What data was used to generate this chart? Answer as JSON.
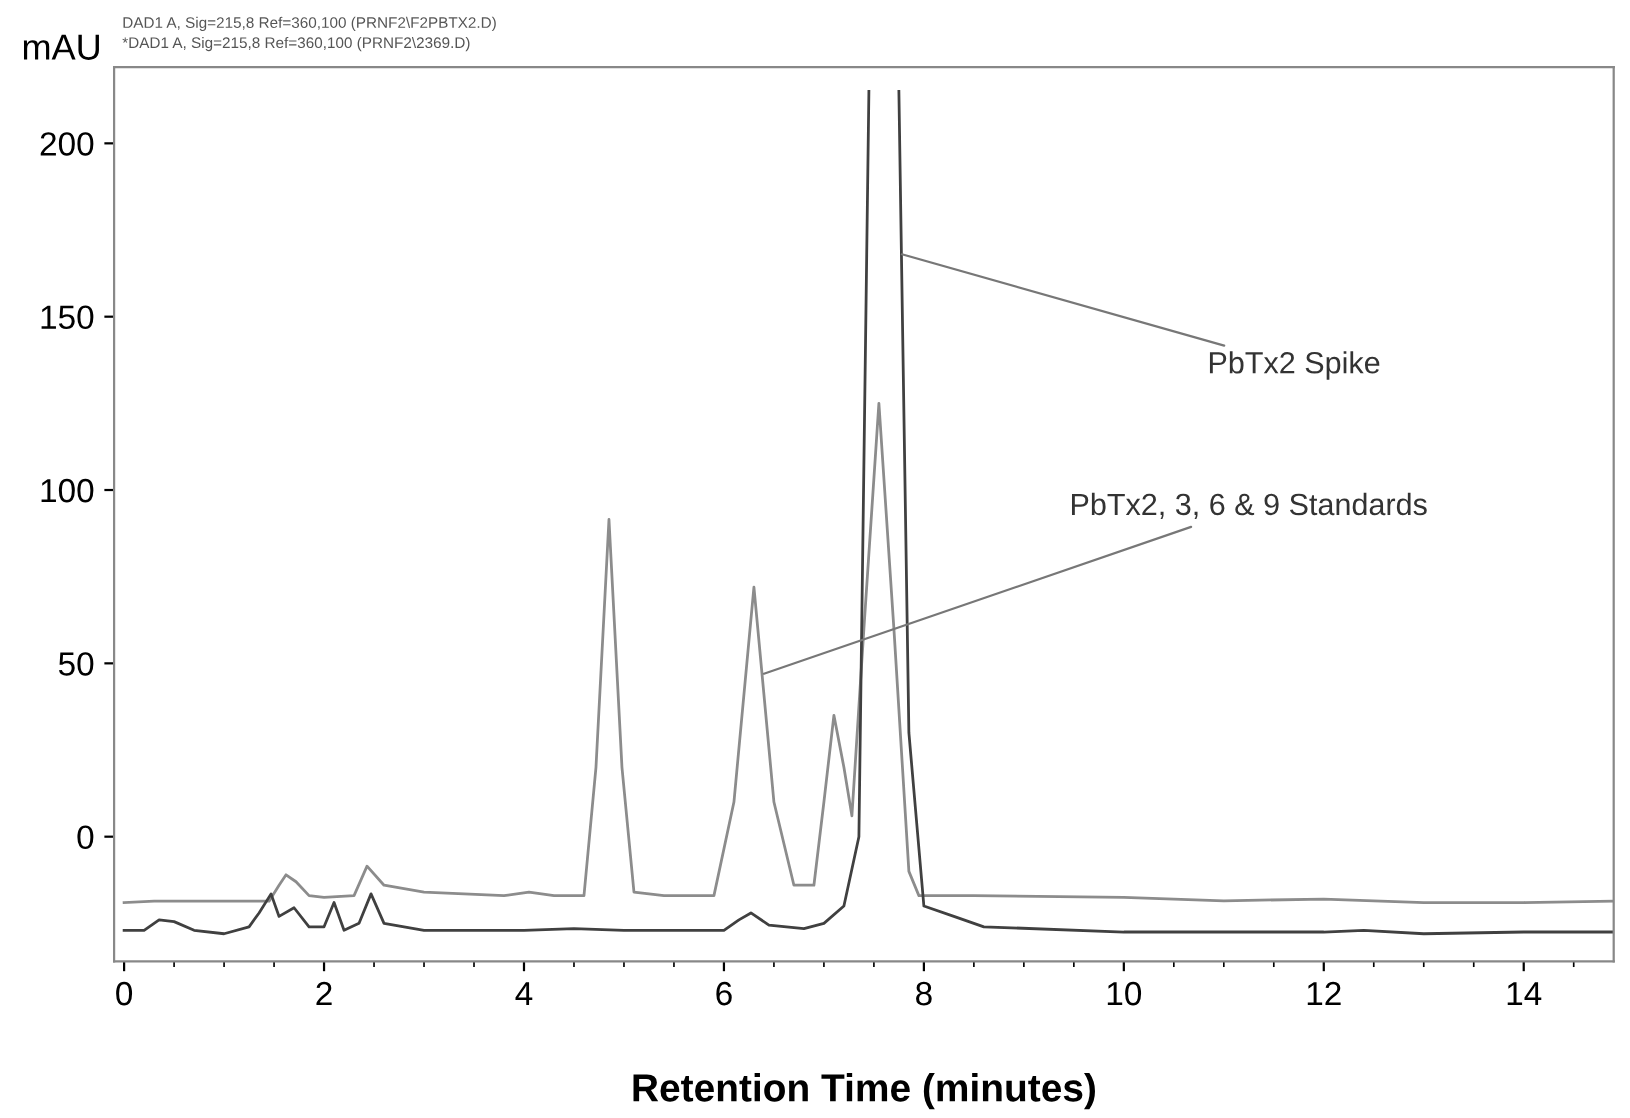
{
  "chart_data": {
    "type": "line",
    "xlabel": "Retention Time (minutes)",
    "ylabel": "mAU",
    "xlim": [
      -0.1,
      14.9
    ],
    "ylim": [
      -36,
      222
    ],
    "xticks": [
      0,
      2,
      4,
      6,
      8,
      10,
      12,
      14
    ],
    "yticks": [
      0,
      50,
      100,
      150,
      200
    ],
    "grid": false,
    "legend": false,
    "marker": "none",
    "line_style": "solid",
    "series": [
      {
        "color": "#8c8c8c",
        "x": [
          0,
          0.3,
          1.0,
          1.45,
          1.55,
          1.62,
          1.72,
          1.85,
          2.0,
          2.3,
          2.43,
          2.6,
          3.0,
          3.8,
          4.05,
          4.3,
          4.6,
          4.72,
          4.85,
          4.98,
          5.1,
          5.4,
          5.9,
          6.1,
          6.3,
          6.5,
          6.7,
          6.9,
          7.0,
          7.1,
          7.2,
          7.28,
          7.4,
          7.55,
          7.7,
          7.85,
          7.95,
          8.5,
          10,
          11,
          12,
          13,
          14,
          14.9
        ],
        "values": [
          -19,
          -18.6,
          -18.6,
          -18.6,
          -14,
          -11,
          -13,
          -17,
          -17.5,
          -17,
          -8.5,
          -14,
          -16,
          -17,
          -16,
          -17,
          -17,
          20,
          91.5,
          20,
          -16,
          -17,
          -17,
          10,
          72,
          10,
          -14,
          -14,
          10,
          35,
          20,
          6,
          60,
          125,
          60,
          -10,
          -17,
          -17,
          -17.5,
          -18.5,
          -18,
          -19,
          -19,
          -18.6
        ]
      },
      {
        "color": "#404040",
        "x": [
          0,
          0.2,
          0.35,
          0.5,
          0.7,
          1.0,
          1.25,
          1.35,
          1.47,
          1.55,
          1.7,
          1.85,
          2.0,
          2.1,
          2.2,
          2.35,
          2.47,
          2.6,
          3.0,
          4.0,
          4.5,
          5.0,
          6.0,
          6.15,
          6.27,
          6.45,
          6.8,
          7.0,
          7.2,
          7.35,
          7.45,
          7.6,
          7.75,
          7.85,
          8.0,
          8.3,
          8.6,
          10,
          12,
          12.4,
          13,
          14,
          14.9
        ],
        "values": [
          -27,
          -27,
          -24,
          -24.5,
          -27,
          -28,
          -26,
          -22,
          -16.5,
          -23,
          -20.5,
          -26,
          -26,
          -19,
          -27,
          -25,
          -16.5,
          -25,
          -27,
          -27,
          -26.5,
          -27,
          -27,
          -24,
          -22,
          -25.5,
          -26.5,
          -25,
          -20,
          0,
          215,
          null,
          215,
          30,
          -20,
          -23,
          -26,
          -27.5,
          -27.5,
          -27,
          -28,
          -27.5,
          -27.5
        ]
      }
    ],
    "annotations": [
      {
        "text": "PbTx2 Spike",
        "x": 7.78,
        "y": 168
      },
      {
        "text": "PbTx2, 3, 6 & 9 Standards",
        "x": 6.4,
        "y": 47
      },
      "DAD1 A, Sig=215,8 Ref=360,100 (PRNF2\\F2PBTX2.D)",
      "*DAD1 A, Sig=215,8 Ref=360,100 (PRNF2\\2369.D)"
    ]
  }
}
